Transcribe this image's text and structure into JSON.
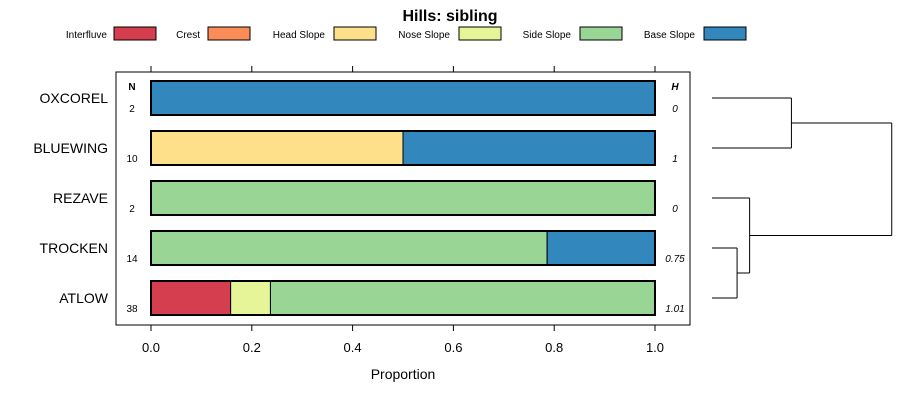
{
  "chart_data": {
    "type": "bar",
    "orientation": "horizontal",
    "stacked": true,
    "title": "Hills: sibling",
    "xlabel": "Proportion",
    "ylabel": "",
    "xlim": [
      0,
      1
    ],
    "x_ticks": [
      "0.0",
      "0.2",
      "0.4",
      "0.6",
      "0.8",
      "1.0"
    ],
    "x_tick_values": [
      0,
      0.2,
      0.4,
      0.6,
      0.8,
      1.0
    ],
    "legend_position": "top",
    "n_header": "N",
    "h_header": "H",
    "legend": [
      {
        "name": "Interfluve",
        "color": "#D53E4F"
      },
      {
        "name": "Crest",
        "color": "#FC8D59"
      },
      {
        "name": "Head Slope",
        "color": "#FEE08B"
      },
      {
        "name": "Nose Slope",
        "color": "#E6F598"
      },
      {
        "name": "Side Slope",
        "color": "#99D594"
      },
      {
        "name": "Base Slope",
        "color": "#3288BD"
      }
    ],
    "categories": [
      "OXCOREL",
      "BLUEWING",
      "REZAVE",
      "TROCKEN",
      "ATLOW"
    ],
    "n": [
      "2",
      "10",
      "2",
      "14",
      "38"
    ],
    "h": [
      "0",
      "1",
      "0",
      "0.75",
      "1.01"
    ],
    "series": [
      {
        "name": "Interfluve",
        "values": [
          0,
          0,
          0,
          0,
          0.158
        ]
      },
      {
        "name": "Crest",
        "values": [
          0,
          0,
          0,
          0,
          0
        ]
      },
      {
        "name": "Head Slope",
        "values": [
          0,
          0.5,
          0,
          0,
          0
        ]
      },
      {
        "name": "Nose Slope",
        "values": [
          0,
          0,
          0,
          0,
          0.079
        ]
      },
      {
        "name": "Side Slope",
        "values": [
          0,
          0,
          1,
          0.786,
          0.763
        ]
      },
      {
        "name": "Base Slope",
        "values": [
          1,
          0.5,
          0,
          0.214,
          0
        ]
      }
    ],
    "dendrogram": {
      "leaves": [
        "OXCOREL",
        "BLUEWING",
        "REZAVE",
        "TROCKEN",
        "ATLOW"
      ],
      "merges": [
        {
          "a": "TROCKEN",
          "b": "ATLOW",
          "height": 0.06
        },
        {
          "a": "REZAVE",
          "b": "TROCKEN+ATLOW",
          "height": 0.09
        },
        {
          "a": "OXCOREL",
          "b": "BLUEWING",
          "height": 0.19
        },
        {
          "a": "OXCOREL+BLUEWING",
          "b": "REZAVE+TROCKEN+ATLOW",
          "height": 0.43
        }
      ]
    }
  }
}
